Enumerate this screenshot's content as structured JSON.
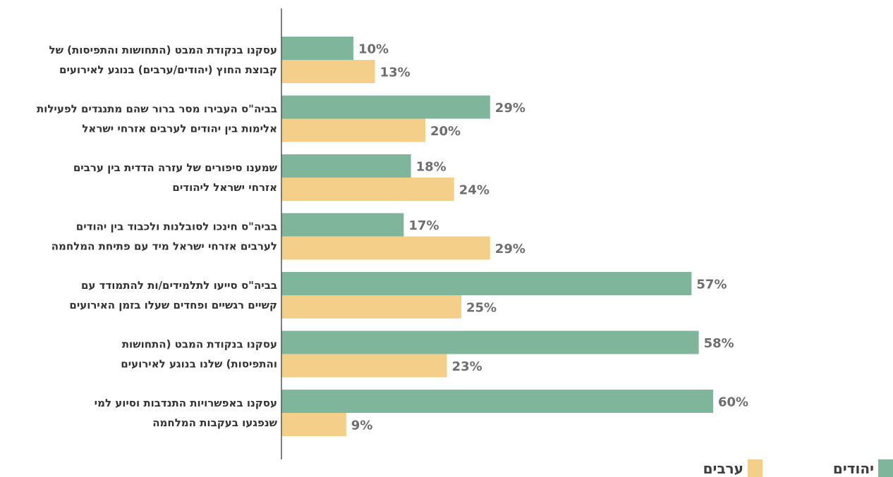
{
  "chart_data": {
    "type": "bar",
    "orientation": "horizontal",
    "categories": [
      [
        "עסקנו בנקודת המבט (התחושות והתפיסות) של",
        "קבוצת החוץ (יהודים/ערבים) בנוגע לאירועים"
      ],
      [
        "בביה\"ס העבירו מסר ברור שהם מתנגדים לפעילות",
        "אלימות בין יהודים  לערבים אזרחי ישראל"
      ],
      [
        "שמענו סיפורים של עזרה הדדית בין ערבים",
        "אזרחי ישראל ליהודים"
      ],
      [
        "בביה\"ס חינכו לסובלנות ולכבוד בין יהודים",
        "לערבים אזרחי ישראל מיד עם פתיחת המלחמה"
      ],
      [
        "בביה\"ס סייעו לתלמידים/ות להתמודד עם",
        "קשיים רגשיים ופחדים שעלו בזמן האירועים"
      ],
      [
        "עסקנו בנקודת המבט (התחושות",
        "והתפיסות) שלנו בנוגע לאירועים"
      ],
      [
        "עסקנו באפשרויות התנדבות וסיוע למי",
        "שנפגעו בעקבות המלחמה"
      ]
    ],
    "series": [
      {
        "name": "יהודים",
        "color": "#7fb59a",
        "values": [
          10,
          29,
          18,
          17,
          57,
          58,
          60
        ],
        "labels": [
          "10%",
          "29%",
          "18%",
          "17%",
          "57%",
          "58%",
          "60%"
        ]
      },
      {
        "name": "ערבים",
        "color": "#f3cf8a",
        "values": [
          13,
          20,
          24,
          29,
          25,
          23,
          9
        ],
        "labels": [
          "13%",
          "20%",
          "24%",
          "29%",
          "25%",
          "23%",
          "9%"
        ]
      }
    ],
    "value_unit": "%",
    "xlim": [
      0,
      100
    ],
    "grid": false,
    "legend_position": "bottom-right"
  }
}
